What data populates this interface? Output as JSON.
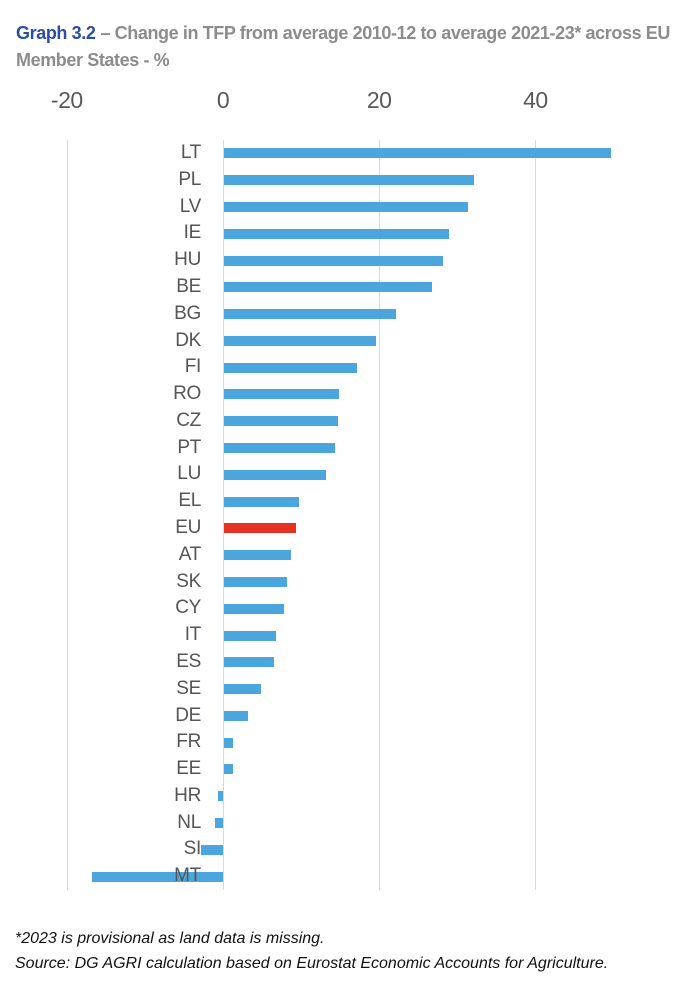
{
  "title": {
    "prefix": "Graph 3.2",
    "line1": "– Change in TFP from average 2010-12 to average 2021-23* across EU",
    "line2": "Member States - %"
  },
  "footnotes": [
    "*2023 is provisional as land data is missing.",
    "Source: DG AGRI calculation based on Eurostat Economic Accounts for Agriculture."
  ],
  "chart_data": {
    "type": "bar",
    "orientation": "horizontal",
    "title": "Change in TFP from average 2010-12 to average 2021-23 across EU Member States - %",
    "xlabel": "",
    "ylabel": "",
    "unit": "%",
    "ticks": [
      -20,
      0,
      20,
      40
    ],
    "xlim": [
      -24,
      58
    ],
    "grid": "vertical-only",
    "categories": [
      "LT",
      "PL",
      "LV",
      "IE",
      "HU",
      "BE",
      "BG",
      "DK",
      "FI",
      "RO",
      "CZ",
      "PT",
      "LU",
      "EL",
      "EU",
      "AT",
      "SK",
      "CY",
      "IT",
      "ES",
      "SE",
      "DE",
      "FR",
      "EE",
      "HR",
      "NL",
      "SI",
      "MT"
    ],
    "values": [
      49.5,
      32.0,
      31.2,
      28.8,
      28.0,
      26.6,
      22.0,
      19.5,
      17.0,
      14.7,
      14.6,
      14.2,
      13.0,
      9.6,
      9.2,
      8.6,
      8.1,
      7.7,
      6.6,
      6.4,
      4.8,
      3.1,
      1.2,
      1.1,
      -0.6,
      -1.0,
      -2.8,
      -16.8
    ],
    "highlight": {
      "category": "EU",
      "color": "#e63222"
    },
    "bar_color": "#4ba6de",
    "gridline_color": "#d9d9d9",
    "tick_color": "#595959",
    "label_color": "#555555"
  }
}
